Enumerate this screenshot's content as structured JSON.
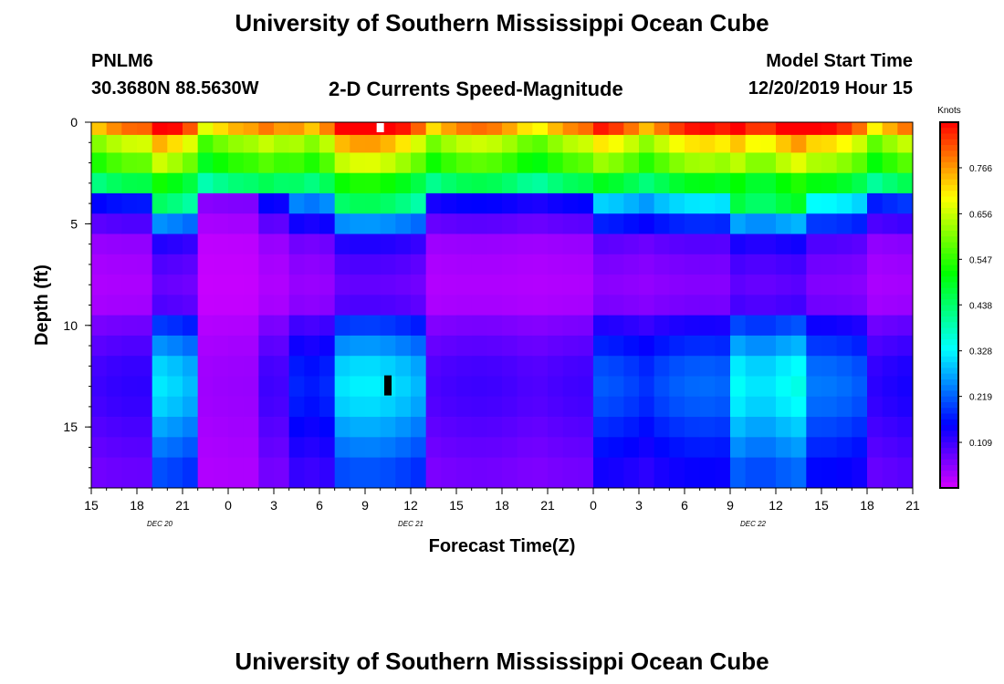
{
  "header": {
    "title": "University of Southern Mississippi Ocean Cube",
    "station_id": "PNLM6",
    "coordinates": "30.3680N 88.5630W",
    "subtitle": "2-D Currents Speed-Magnitude",
    "model_start_label": "Model Start Time",
    "model_start_value": "12/20/2019 Hour 15"
  },
  "footer": {
    "title": "University of Southern Mississippi Ocean Cube"
  },
  "chart_data": {
    "type": "heatmap",
    "title": "2-D Currents Speed-Magnitude",
    "xlabel": "Forecast Time(Z)",
    "ylabel": "Depth (ft)",
    "x_hours_from_start": [
      0,
      54
    ],
    "x_tick_labels": [
      "15",
      "18",
      "21",
      "0",
      "3",
      "6",
      "9",
      "12",
      "15",
      "18",
      "21",
      "0",
      "3",
      "6",
      "9",
      "12",
      "15",
      "18",
      "21"
    ],
    "day_labels": [
      {
        "label": "DEC  20",
        "tick_index": 1.5
      },
      {
        "label": "DEC  21",
        "tick_index": 7
      },
      {
        "label": "DEC  22",
        "tick_index": 14.5
      }
    ],
    "ylim": [
      0,
      18
    ],
    "y_ticks": [
      0,
      5,
      10,
      15
    ],
    "y_inverted": true,
    "colorbar": {
      "unit": "Knots",
      "ticks": [
        0.109,
        0.219,
        0.328,
        0.438,
        0.547,
        0.656,
        0.766
      ],
      "range": [
        0,
        0.875
      ]
    },
    "depth_layers_ft": [
      0.25,
      1.0,
      2.0,
      3.0,
      4.0,
      5.0,
      6.0,
      7.0,
      8.0,
      9.0,
      10.0,
      11.0,
      12.0,
      13.0,
      14.0,
      15.0,
      16.0,
      17.0
    ],
    "profile_knots": [
      0.8,
      0.66,
      0.58,
      0.46,
      0.28,
      0.16,
      0.08,
      0.06,
      0.05,
      0.06,
      0.12,
      0.16,
      0.19,
      0.2,
      0.19,
      0.17,
      0.15,
      0.13
    ],
    "periods": [
      {
        "hours": [
          0,
          4
        ],
        "factor": 0.55
      },
      {
        "hours": [
          4,
          7
        ],
        "factor": 1.5
      },
      {
        "hours": [
          7,
          11
        ],
        "factor": 0.2
      },
      {
        "hours": [
          11,
          13
        ],
        "factor": 0.5
      },
      {
        "hours": [
          13,
          16
        ],
        "factor": 0.9
      },
      {
        "hours": [
          16,
          22
        ],
        "factor": 1.5
      },
      {
        "hours": [
          22,
          33
        ],
        "factor": 0.5
      },
      {
        "hours": [
          33,
          37
        ],
        "factor": 1.0
      },
      {
        "hours": [
          37,
          42
        ],
        "factor": 1.05
      },
      {
        "hours": [
          42,
          47
        ],
        "factor": 1.65
      },
      {
        "hours": [
          47,
          51
        ],
        "factor": 1.1
      },
      {
        "hours": [
          51,
          54
        ],
        "factor": 0.65
      }
    ],
    "markers": [
      {
        "type": "surface",
        "hour": 19,
        "depth": 0.25,
        "color": "#ffffff"
      },
      {
        "type": "bottom",
        "hour": 19.5,
        "depth": 13,
        "color": "#000000"
      }
    ]
  }
}
